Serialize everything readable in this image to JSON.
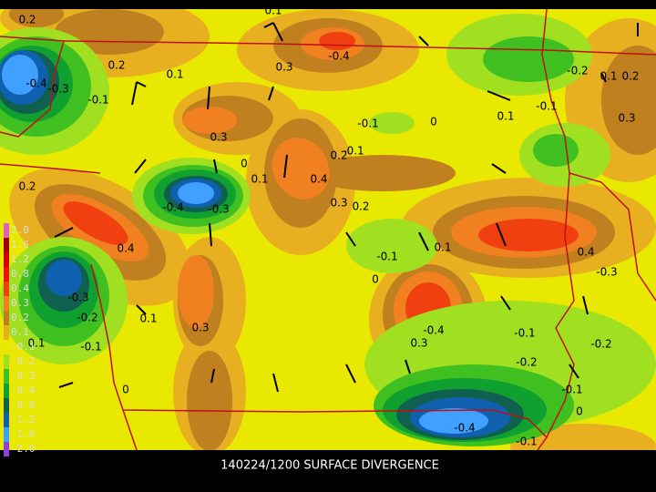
{
  "map": {
    "title": "140224/1200 SURFACE DIVERGENCE",
    "legend": [
      {
        "label": "2.0",
        "color": "#e060c0"
      },
      {
        "label": "1.6",
        "color": "#a00000"
      },
      {
        "label": "1.2",
        "color": "#d00000"
      },
      {
        "label": "0.8",
        "color": "#f01000"
      },
      {
        "label": "0.4",
        "color": "#f04010"
      },
      {
        "label": "0.3",
        "color": "#f08020"
      },
      {
        "label": "0.2",
        "color": "#c08020"
      },
      {
        "label": "0.1",
        "color": "#e8b020"
      },
      {
        "label": "-0.1",
        "color": "#e8e800"
      },
      {
        "label": "-0.2",
        "color": "#a0e020"
      },
      {
        "label": "-0.3",
        "color": "#40c020"
      },
      {
        "label": "-0.4",
        "color": "#10a030"
      },
      {
        "label": "-0.8",
        "color": "#106050"
      },
      {
        "label": "-1.2",
        "color": "#1060b0"
      },
      {
        "label": "-1.6",
        "color": "#40a0ff"
      },
      {
        "label": "-2.0",
        "color": "#9040e0"
      }
    ],
    "contour_labels": [
      "0.2",
      "0.1",
      "0.2",
      "0.1",
      "0.3",
      "-0.4",
      "-0.2",
      "0.1",
      "0.2",
      "-0.4",
      "-0.3",
      "-0.1",
      "0.3",
      "-0.1",
      "0",
      "0.1",
      "-0.1",
      "0.3",
      "0.2",
      "-0.1",
      "0",
      "0.1",
      "0.4",
      "0.2",
      "0.3",
      "0.2",
      "-0.4",
      "-0.3",
      "0.4",
      "-0.1",
      "0.1",
      "0.4",
      "0",
      "-0.3",
      "-0.3",
      "-0.2",
      "0.1",
      "0.3",
      "-0.4",
      "-0.1",
      "0.3",
      "0.1",
      "-0.1",
      "-0.2",
      "-0.2",
      "0",
      "-0.1",
      "0",
      "-0.4",
      "-0.1"
    ]
  }
}
